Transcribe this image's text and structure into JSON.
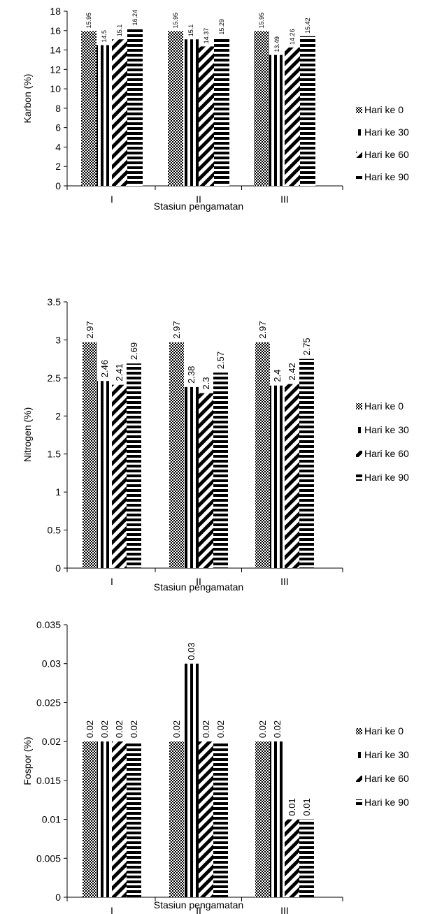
{
  "legend": {
    "placement": "right",
    "items": [
      "Hari ke 0",
      "Hari ke 30",
      "Hari ke 60",
      "Hari ke 90"
    ],
    "patterns": [
      "checker",
      "vertical",
      "diagonal",
      "horizontal"
    ]
  },
  "chart_data": [
    {
      "type": "bar",
      "xlabel": "Stasiun pengamatan",
      "ylabel": "Karbon (%)",
      "categories": [
        "I",
        "II",
        "III"
      ],
      "ylim": [
        0,
        18
      ],
      "yticks": [
        "0",
        "2",
        "4",
        "6",
        "8",
        "10",
        "12",
        "14",
        "16",
        "18"
      ],
      "series": [
        {
          "name": "Hari ke 0",
          "values": [
            15.95,
            15.95,
            15.95
          ],
          "labels": [
            "15.95",
            "15.95",
            "15.95"
          ]
        },
        {
          "name": "Hari ke 30",
          "values": [
            14.5,
            15.1,
            13.49
          ],
          "labels": [
            "14.5",
            "15.1",
            "13.49"
          ]
        },
        {
          "name": "Hari ke 60",
          "values": [
            15.1,
            14.37,
            14.26
          ],
          "labels": [
            "15.1",
            "14.37",
            "14.26"
          ]
        },
        {
          "name": "Hari ke 90",
          "values": [
            16.24,
            15.29,
            15.42
          ],
          "labels": [
            "16.24",
            "15.29",
            "15.42"
          ]
        }
      ]
    },
    {
      "type": "bar",
      "xlabel": "Stasiun pengamatan",
      "ylabel": "Nitrogen (%)",
      "categories": [
        "I",
        "II",
        "III"
      ],
      "ylim": [
        0,
        3.5
      ],
      "yticks": [
        "0",
        "0.5",
        "1",
        "1.5",
        "2",
        "2.5",
        "3",
        "3.5"
      ],
      "series": [
        {
          "name": "Hari ke 0",
          "values": [
            2.97,
            2.97,
            2.97
          ],
          "labels": [
            "2.97",
            "2.97",
            "2.97"
          ]
        },
        {
          "name": "Hari ke 30",
          "values": [
            2.46,
            2.38,
            2.4
          ],
          "labels": [
            "2.46",
            "2.38",
            "2.4"
          ]
        },
        {
          "name": "Hari ke 60",
          "values": [
            2.41,
            2.3,
            2.42
          ],
          "labels": [
            "2.41",
            "2.3",
            "2.42"
          ]
        },
        {
          "name": "Hari ke 90",
          "values": [
            2.69,
            2.57,
            2.75
          ],
          "labels": [
            "2.69",
            "2.57",
            "2.75"
          ]
        }
      ]
    },
    {
      "type": "bar",
      "xlabel": "Stasiun pengamatan",
      "ylabel": "Fospor (%)",
      "categories": [
        "I",
        "II",
        "III"
      ],
      "ylim": [
        0,
        0.035
      ],
      "yticks": [
        "0",
        "0.005",
        "0.01",
        "0.015",
        "0.02",
        "0.025",
        "0.03",
        "0.035"
      ],
      "series": [
        {
          "name": "Hari ke 0",
          "values": [
            0.02,
            0.02,
            0.02
          ],
          "labels": [
            "0.02",
            "0.02",
            "0.02"
          ]
        },
        {
          "name": "Hari ke 30",
          "values": [
            0.02,
            0.03,
            0.02
          ],
          "labels": [
            "0.02",
            "0.03",
            "0.02"
          ]
        },
        {
          "name": "Hari ke 60",
          "values": [
            0.02,
            0.02,
            0.01
          ],
          "labels": [
            "0.02",
            "0.02",
            "0.01"
          ]
        },
        {
          "name": "Hari ke 90",
          "values": [
            0.02,
            0.02,
            0.01
          ],
          "labels": [
            "0.02",
            "0.02",
            "0.01"
          ]
        }
      ]
    }
  ]
}
